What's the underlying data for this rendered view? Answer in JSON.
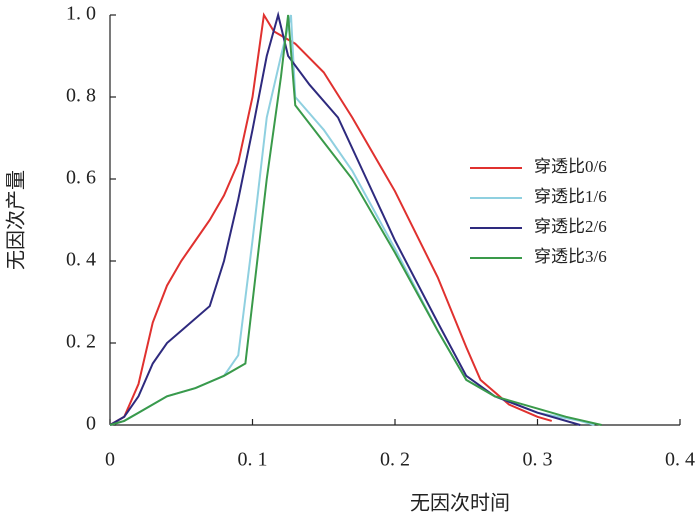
{
  "chart_data": {
    "type": "line",
    "xlabel": "无因次时间",
    "ylabel": "无因次产量",
    "xlim": [
      0,
      0.4
    ],
    "ylim": [
      0,
      1.0
    ],
    "xticks": [
      0,
      {
        "value": 0.1,
        "label": "0. 1"
      },
      {
        "value": 0.2,
        "label": "0. 2"
      },
      {
        "value": 0.3,
        "label": "0. 3"
      },
      {
        "value": 0.4,
        "label": "0. 4"
      }
    ],
    "yticks": [
      0,
      {
        "value": 0.2,
        "label": "0. 2"
      },
      {
        "value": 0.4,
        "label": "0. 4"
      },
      {
        "value": 0.6,
        "label": "0. 6"
      },
      {
        "value": 0.8,
        "label": "0. 8"
      },
      {
        "value": 1.0,
        "label": "1. 0"
      }
    ],
    "grid": false,
    "legend": "right",
    "series": [
      {
        "name": "穿透比0/6",
        "color": "#e0312f",
        "x": [
          0,
          0.01,
          0.02,
          0.03,
          0.04,
          0.05,
          0.06,
          0.07,
          0.08,
          0.09,
          0.1,
          0.108,
          0.115,
          0.13,
          0.15,
          0.17,
          0.2,
          0.23,
          0.25,
          0.26,
          0.28,
          0.3,
          0.31
        ],
        "values": [
          0,
          0.02,
          0.1,
          0.25,
          0.34,
          0.4,
          0.45,
          0.5,
          0.56,
          0.64,
          0.8,
          1.0,
          0.96,
          0.93,
          0.86,
          0.75,
          0.57,
          0.36,
          0.19,
          0.11,
          0.05,
          0.02,
          0.01
        ]
      },
      {
        "name": "穿透比1/6",
        "color": "#8fd0e0",
        "x": [
          0,
          0.01,
          0.02,
          0.04,
          0.06,
          0.08,
          0.09,
          0.1,
          0.11,
          0.12,
          0.127,
          0.13,
          0.15,
          0.17,
          0.2,
          0.23,
          0.25,
          0.27,
          0.3,
          0.33,
          0.34
        ],
        "values": [
          0,
          0.01,
          0.03,
          0.07,
          0.09,
          0.12,
          0.17,
          0.45,
          0.75,
          0.9,
          1.0,
          0.8,
          0.72,
          0.62,
          0.43,
          0.23,
          0.11,
          0.07,
          0.03,
          0.01,
          0
        ]
      },
      {
        "name": "穿透比2/6",
        "color": "#2e2a7e",
        "x": [
          0,
          0.01,
          0.02,
          0.03,
          0.04,
          0.05,
          0.07,
          0.08,
          0.09,
          0.1,
          0.11,
          0.118,
          0.125,
          0.14,
          0.16,
          0.18,
          0.2,
          0.23,
          0.25,
          0.27,
          0.3,
          0.33
        ],
        "values": [
          0,
          0.02,
          0.07,
          0.15,
          0.2,
          0.23,
          0.29,
          0.4,
          0.55,
          0.72,
          0.9,
          1.0,
          0.9,
          0.83,
          0.75,
          0.6,
          0.45,
          0.25,
          0.12,
          0.07,
          0.03,
          0
        ]
      },
      {
        "name": "穿透比3/6",
        "color": "#3a9a4a",
        "x": [
          0,
          0.01,
          0.02,
          0.04,
          0.06,
          0.08,
          0.095,
          0.11,
          0.12,
          0.125,
          0.13,
          0.15,
          0.17,
          0.2,
          0.23,
          0.25,
          0.27,
          0.3,
          0.32,
          0.345
        ],
        "values": [
          0,
          0.01,
          0.03,
          0.07,
          0.09,
          0.12,
          0.15,
          0.6,
          0.85,
          1.0,
          0.78,
          0.69,
          0.6,
          0.42,
          0.23,
          0.11,
          0.07,
          0.04,
          0.02,
          0
        ]
      }
    ]
  }
}
